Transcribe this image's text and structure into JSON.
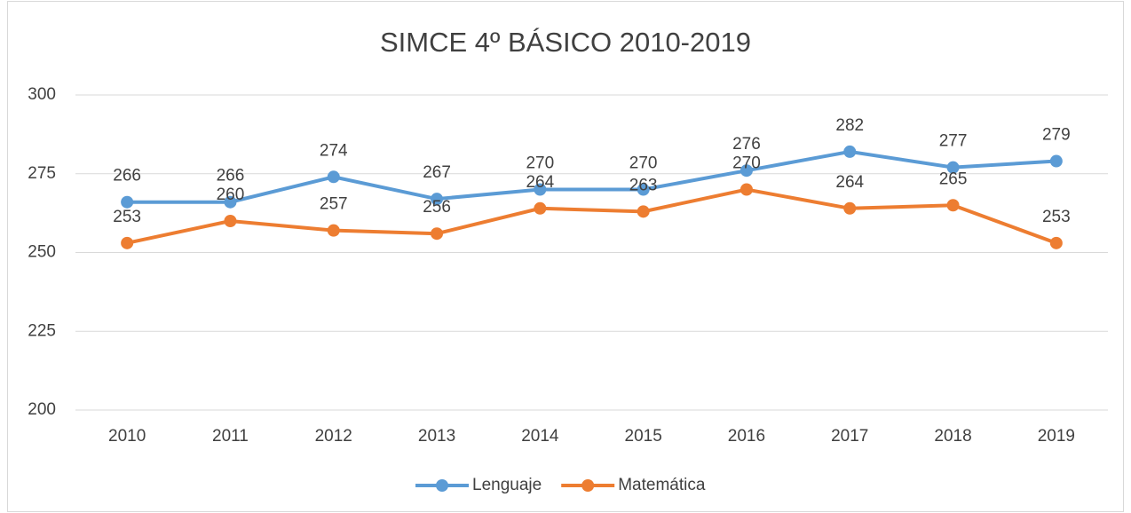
{
  "chart_data": {
    "type": "line",
    "title": "SIMCE 4º BÁSICO 2010-2019",
    "categories": [
      "2010",
      "2011",
      "2012",
      "2013",
      "2014",
      "2015",
      "2016",
      "2017",
      "2018",
      "2019"
    ],
    "series": [
      {
        "name": "Lenguaje",
        "color": "#5b9bd5",
        "values": [
          266,
          266,
          274,
          267,
          270,
          270,
          276,
          282,
          277,
          279
        ]
      },
      {
        "name": "Matemática",
        "color": "#ed7d31",
        "values": [
          253,
          260,
          257,
          256,
          264,
          263,
          270,
          264,
          265,
          253
        ]
      }
    ],
    "ylim": [
      200,
      300
    ],
    "yticks": [
      200,
      225,
      250,
      275,
      300
    ],
    "grid": true,
    "legend": "bottom"
  }
}
